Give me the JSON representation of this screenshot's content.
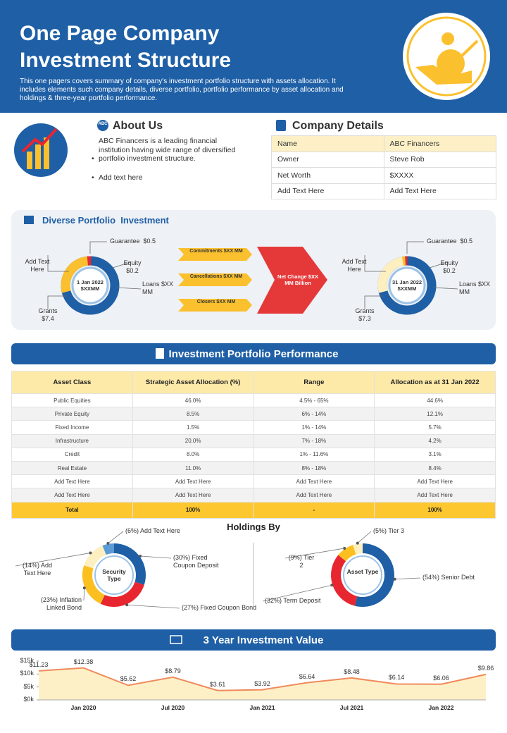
{
  "header": {
    "title_lines": [
      "One Page Company",
      "Investment Structure"
    ],
    "description": "This one pagers covers summary of company's investment portfolio structure with assets allocation. It includes elements  such company details, diverse portfolio, portfolio performance by asset allocation and holdings & three-year portfolio performance."
  },
  "about": {
    "logo_text": "ABC",
    "title": "About Us",
    "bullets": [
      "ABC Financers is a leading financial institution having wide range of diversified portfolio investment structure.",
      "Add text here"
    ]
  },
  "company": {
    "title": "Company Details",
    "rows": [
      [
        "Name",
        "ABC Financers"
      ],
      [
        "Owner",
        "Steve Rob"
      ],
      [
        "Net Worth",
        "$XXXX"
      ],
      [
        "Add Text Here",
        "Add Text Here"
      ]
    ]
  },
  "portfolio": {
    "title": "Diverse Portfolio  Investment",
    "left": {
      "center": "1 Jan 2022 $XXMM",
      "labels": [
        "Guarantee  $0.5",
        "Equity $0.2",
        "Loans $XX  MM",
        "Grants $7.4",
        "Add Text Here"
      ]
    },
    "right": {
      "center": "31 Jan 2022 $XXMM",
      "labels": [
        "Guarantee  $0.5",
        "Equity $0.2",
        "Loans $XX  MM",
        "Grants $7.3",
        "Add Text Here"
      ]
    },
    "flows": [
      "Commitments $XX MM",
      "Cancellations $XX MM",
      "Closers $XX MM"
    ],
    "net_change": "Net Change $XX MM Billion"
  },
  "performance": {
    "title": "Investment Portfolio Performance",
    "header": [
      "Asset Class",
      "Strategic  Asset Allocation (%)",
      "Range",
      "Allocation as at 31 Jan 2022"
    ],
    "rows": [
      [
        "Public Equities",
        "46.0%",
        "4.5% - 65%",
        "44.6%"
      ],
      [
        "Private Equity",
        "8.5%",
        "6% - 14%",
        "12.1%"
      ],
      [
        "Fixed Income",
        "1.5%",
        "1% - 14%",
        "5.7%"
      ],
      [
        "Infrastructure",
        "20.0%",
        "7% - 18%",
        "4.2%"
      ],
      [
        "Credit",
        "8.0%",
        "1% - 11.6%",
        "3.1%"
      ],
      [
        "Real Estate",
        "11.0%",
        "8% - 18%",
        "8.4%"
      ],
      [
        "Add Text Here",
        "Add Text Here",
        "Add Text Here",
        "Add Text Here"
      ],
      [
        "Add Text Here",
        "Add Text Here",
        "Add Text Here",
        "Add Text Here"
      ]
    ],
    "total": [
      "Total",
      "100%",
      "-",
      "100%"
    ]
  },
  "holdings": {
    "title": "Holdings By",
    "charts": [
      {
        "type": "donut",
        "center": "Security Type",
        "names": [
          "Add Text Here",
          "Fixed Coupon Deposit",
          "Fixed Coupon Bond",
          "Inflation Linked Bond",
          "Add Text Here"
        ],
        "values": [
          6,
          30,
          27,
          23,
          14
        ],
        "value_labels": [
          "(6%)",
          "(30%)",
          "(27%)",
          "(23%)",
          "(14%)"
        ],
        "colors": [
          "#5b9bd5",
          "#1e5fa6",
          "#e8262f",
          "#fbbf20",
          "#fdefc0"
        ],
        "start": -0.06
      },
      {
        "type": "donut",
        "center": "Asset Type",
        "names": [
          "Tier 3",
          "Senior Debt",
          "Term Deposit",
          "Tier 2"
        ],
        "values": [
          5,
          54,
          32,
          9
        ],
        "value_labels": [
          "(5%)",
          "(54%)",
          "(32%)",
          "(9%)"
        ],
        "colors": [
          "#fdefc0",
          "#1e5fa6",
          "#e8262f",
          "#fbbf20"
        ],
        "start": -0.05
      }
    ]
  },
  "chart_data": {
    "type": "area",
    "title": "3 Year Investment Value",
    "categories": [
      null,
      "Jan 2020",
      null,
      "Jul 2020",
      null,
      "Jan 2021",
      null,
      "Jul 2021",
      null,
      "Jan 2022",
      null
    ],
    "values": [
      11.23,
      12.38,
      5.62,
      8.79,
      3.61,
      3.92,
      6.64,
      8.48,
      6.14,
      6.06,
      9.86
    ],
    "value_labels": [
      "$11.23",
      "$12.38",
      "$5.62",
      "$8.79",
      "$3.61",
      "$3.92",
      "$6.64",
      "$8.48",
      "$6.14",
      "$6.06",
      "$9.86"
    ],
    "color": "#f08a5d",
    "fill": "#fdf0c6",
    "ylim": [
      0,
      15
    ],
    "yticks": [
      {
        "value": 0,
        "label": "$0k"
      },
      {
        "value": 5,
        "label": "$5k"
      },
      {
        "value": 10,
        "label": "$10k"
      },
      {
        "value": 15,
        "label": "$15k"
      }
    ]
  }
}
